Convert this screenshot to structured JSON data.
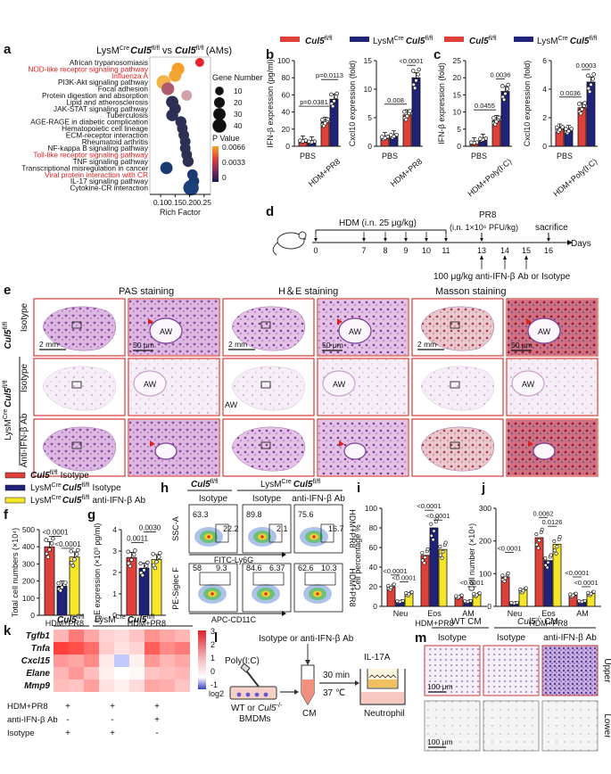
{
  "panels": {
    "a": {
      "letter": "a",
      "title_prefix": "LysM",
      "title_sup": "Cre",
      "title_gene": "Cul5",
      "title_sup2": "fl/fl",
      "title_vs": "vs",
      "title_gene2": "Cul5",
      "title_sup3": "fl/fl",
      "title_suffix": "(AMs)",
      "xlabel": "Rich Factor",
      "xticks": [
        "0.10",
        "0.15",
        "0.20",
        "0.25"
      ],
      "legend_size_title": "Gene Number",
      "legend_sizes": [
        "10",
        "20",
        "30",
        "40"
      ],
      "legend_color_title": "P Value",
      "legend_color_ticks": [
        "0.0066",
        "0.0033",
        "0"
      ],
      "pathways": [
        {
          "name": "African trypanosomiasis",
          "red": false,
          "x": 0.235,
          "size": 8,
          "color": "#e8232a"
        },
        {
          "name": "NOD-like receptor signaling pathway",
          "red": true,
          "x": 0.16,
          "size": 24,
          "color": "#f6a02a"
        },
        {
          "name": "Influenza A",
          "red": true,
          "x": 0.15,
          "size": 22,
          "color": "#f3a535"
        },
        {
          "name": "PI3K-Akt signaling pathway",
          "red": false,
          "x": 0.11,
          "size": 32,
          "color": "#f3b54a"
        },
        {
          "name": "Focal adhesion",
          "red": false,
          "x": 0.125,
          "size": 24,
          "color": "#b05a6e"
        },
        {
          "name": "Protein digestion and absorption",
          "red": false,
          "x": 0.19,
          "size": 14,
          "color": "#d2a3a6"
        },
        {
          "name": "Lipid and atherosclerosis",
          "red": false,
          "x": 0.14,
          "size": 22,
          "color": "#2d2f55"
        },
        {
          "name": "JAK-STAT signaling pathway",
          "red": false,
          "x": 0.15,
          "size": 18,
          "color": "#2d2f55"
        },
        {
          "name": "Tuberculosis",
          "red": false,
          "x": 0.14,
          "size": 20,
          "color": "#2d2f55"
        },
        {
          "name": "AGE-RAGE in diabetic complication",
          "red": false,
          "x": 0.17,
          "size": 16,
          "color": "#2d2f55"
        },
        {
          "name": "Hematopoietic cell lineage",
          "red": false,
          "x": 0.175,
          "size": 14,
          "color": "#2d2f55"
        },
        {
          "name": "ECM-receptor interaction",
          "red": false,
          "x": 0.18,
          "size": 14,
          "color": "#2d2f55"
        },
        {
          "name": "Rheumatoid arthritis",
          "red": false,
          "x": 0.185,
          "size": 14,
          "color": "#2d2f55"
        },
        {
          "name": "NF-kappa B signaling pathway",
          "red": false,
          "x": 0.185,
          "size": 14,
          "color": "#2d2f55"
        },
        {
          "name": "Toll-like receptor signaling pathway",
          "red": true,
          "x": 0.19,
          "size": 14,
          "color": "#2d2f55"
        },
        {
          "name": "TNF signaling pathway",
          "red": false,
          "x": 0.195,
          "size": 16,
          "color": "#2d2f55"
        },
        {
          "name": "Transcriptional misregulation in cancer",
          "red": false,
          "x": 0.12,
          "size": 22,
          "color": "#1b3a70"
        },
        {
          "name": "Viral protein interaction with CR",
          "red": true,
          "x": 0.21,
          "size": 14,
          "color": "#1b3a70"
        },
        {
          "name": "IL-17 signaling pathway",
          "red": false,
          "x": 0.215,
          "size": 14,
          "color": "#1b3a70"
        },
        {
          "name": "Cytokine-CR interaction",
          "red": false,
          "x": 0.205,
          "size": 40,
          "color": "#1a3f7a"
        }
      ]
    },
    "legend_bc": {
      "left_label": "Cul5",
      "left_sup": "fl/fl",
      "right_label_prefix": "LysM",
      "right_sup": "Cre",
      "right_label": "Cul5",
      "right_sup2": "fl/fl"
    },
    "b": {
      "letter": "b",
      "chart1": {
        "ylabel": "IFN-β expression (pg/ml)",
        "yticks": [
          "0",
          "20",
          "40",
          "60",
          "80",
          "100"
        ],
        "xlabels": [
          "PBS",
          "HDM+PR8"
        ],
        "pvals": [
          "p=0.0381",
          "p=0.0113"
        ],
        "values": [
          6,
          5,
          28,
          55
        ],
        "ylim": [
          0,
          100
        ]
      },
      "chart2": {
        "ylabel": "Cxcl10 expression (fold)",
        "yticks": [
          "0",
          "5",
          "10",
          "15"
        ],
        "xlabels": [
          "PBS",
          "HDM+PR8"
        ],
        "pvals": [
          "0.008",
          "<0.0001"
        ],
        "values": [
          1.5,
          1.8,
          5.5,
          12
        ],
        "ylim": [
          0,
          15
        ]
      }
    },
    "c": {
      "letter": "c",
      "chart1": {
        "ylabel": "IFN-β expression (fold)",
        "yticks": [
          "0",
          "5",
          "10",
          "15",
          "20",
          "25"
        ],
        "xlabels": [
          "PBS",
          "HDM+Poly(I:C)"
        ],
        "pvals": [
          "0.0455",
          "0.0036"
        ],
        "values": [
          1,
          2,
          7.5,
          16
        ],
        "ylim": [
          0,
          25
        ]
      },
      "chart2": {
        "ylabel": "Cxcl10 expression (fold)",
        "yticks": [
          "0",
          "2",
          "4",
          "6"
        ],
        "xlabels": [
          "PBS",
          "HDM+Poly(I:C)"
        ],
        "pvals": [
          "0.0036",
          "0.0003"
        ],
        "values": [
          1.2,
          1.1,
          2.7,
          4.5
        ],
        "ylim": [
          0,
          6
        ]
      }
    },
    "d": {
      "letter": "d",
      "hdm_label": "HDM (i.n. 25 μg/kg)",
      "pr8_label": "PR8",
      "pr8_dose": "(i.n. 1×10⁶ PFU/kg)",
      "sacrifice": "sacrifice",
      "days_label": "Days",
      "days": [
        "0",
        "7",
        "8",
        "9",
        "10",
        "11",
        "13",
        "14",
        "15",
        "16"
      ],
      "ab_label": "100 μg/kg anti-IFN-β Ab or Isotype"
    },
    "e": {
      "letter": "e",
      "col_titles": [
        "PAS staining",
        "H＆E staining",
        "Masson staining"
      ],
      "row1_gene": "Cul5",
      "row1_sup": "fl/fl",
      "row_isotype": "Isotype",
      "row_anti": "Anti-IFN-β Ab",
      "row23_prefix": "LysM",
      "row23_sup": "Cre",
      "row23_gene": "Cul5",
      "row23_sup2": "fl/fl",
      "scale_2mm": "2 mm",
      "scale_50um": "50 μm",
      "aw": "AW"
    },
    "legend_fg": {
      "items": [
        {
          "gene": "Cul5",
          "sup": "fl/fl",
          "suffix": "Isotype",
          "color": "#e0403a"
        },
        {
          "prefix": "LysM",
          "psup": "Cre",
          "gene": "Cul5",
          "sup": "fl/fl",
          "suffix": "Isotype",
          "color": "#1f237a"
        },
        {
          "prefix": "LysM",
          "psup": "Cre",
          "gene": "Cul5",
          "sup": "fl/fl",
          "suffix": "anti-IFN-β Ab",
          "color": "#f5e627"
        }
      ]
    },
    "f": {
      "letter": "f",
      "ylabel": "Total cell numbers (×10⁴)",
      "yticks": [
        "0",
        "100",
        "200",
        "300",
        "400",
        "500"
      ],
      "xlabel": "HDM+PR8",
      "pvals": [
        "<0.0001",
        "<0.0001"
      ],
      "values": [
        400,
        170,
        340
      ],
      "ylim": [
        0,
        500
      ]
    },
    "g": {
      "letter": "g",
      "ylabel": "IgE expression (×10³ pg/ml)",
      "yticks": [
        "0",
        "1",
        "2",
        "3",
        "4"
      ],
      "xlabel": "HDM+PR8",
      "pvals": [
        "0.0011",
        "0.0030"
      ],
      "values": [
        2.7,
        2.2,
        2.6
      ],
      "ylim": [
        0,
        4
      ]
    },
    "h": {
      "letter": "h",
      "col1_gene": "Cul5",
      "col1_sup": "fl/fl",
      "col23_prefix": "LysM",
      "col23_sup": "Cre",
      "col23_gene": "Cul5",
      "col23_sup2": "fl/fl",
      "sub_titles": [
        "Isotype",
        "Isotype",
        "anti-IFN-β Ab"
      ],
      "row1_y": "SSC-A",
      "row1_x": "FITC-Ly6G",
      "row2_y": "PE-Siglec F",
      "row2_x": "APC-CD11C",
      "side_label": "HDM+PR8",
      "row1_nums": [
        [
          "63.3",
          "22.2"
        ],
        [
          "89.8",
          "2.1"
        ],
        [
          "75.6",
          "16.7"
        ]
      ],
      "row2_nums": [
        [
          "58",
          "9.3"
        ],
        [
          "84.6",
          "6.37"
        ],
        [
          "62.6",
          "10.3"
        ]
      ]
    },
    "i": {
      "letter": "i",
      "ylabel": "Cell percentage %",
      "yticks": [
        "0",
        "20",
        "40",
        "60",
        "80",
        "100"
      ],
      "categories": [
        "Neu",
        "Eos",
        "AM"
      ],
      "xlabel": "HDM+PR8",
      "pvals": [
        "<0.0001",
        "<0.0001",
        "<0.0001",
        "<0.0001",
        "<0.0001"
      ],
      "values": [
        [
          20,
          5,
          13
        ],
        [
          52,
          80,
          58
        ],
        [
          10,
          5,
          12
        ]
      ],
      "ylim": [
        0,
        100
      ]
    },
    "j": {
      "letter": "j",
      "ylabel": "Cell number (×10⁴)",
      "yticks": [
        "0",
        "100",
        "200",
        "300"
      ],
      "categories": [
        "Neu",
        "Eos",
        "AM"
      ],
      "xlabel": "HDM+PR8",
      "pvals": [
        "<0.0001",
        "0.0062",
        "0.0126",
        "<0.0001",
        "<0.0001"
      ],
      "values": [
        [
          90,
          10,
          50
        ],
        [
          210,
          140,
          190
        ],
        [
          35,
          15,
          40
        ]
      ],
      "ylim": [
        0,
        300
      ]
    },
    "k": {
      "letter": "k",
      "head1_gene": "Cul5",
      "head1_sup": "fl/fl",
      "head2_prefix": "LysM",
      "head2_sup": "Cre",
      "head2_gene": "Cul5",
      "head2_sup2": "fl/fl",
      "genes": [
        "Tgfb1",
        "Tnfa",
        "Cxcl15",
        "Elane",
        "Mmp9"
      ],
      "legend_ticks": [
        "3",
        "2",
        "1",
        "0",
        "-1"
      ],
      "legend_unit": "log2",
      "row_labels": [
        "HDM+PR8",
        "anti-IFN-β Ab",
        "Isotype"
      ],
      "signs": [
        [
          "+",
          "+",
          "+"
        ],
        [
          "-",
          "-",
          "+"
        ],
        [
          "+",
          "+",
          "-"
        ]
      ],
      "matrix": [
        [
          1.0,
          1.8,
          1.2,
          0.6,
          0.5,
          0.8,
          1.5,
          1.2,
          1.0
        ],
        [
          2.6,
          2.4,
          2.0,
          0.7,
          0.4,
          0.6,
          2.2,
          1.6,
          1.8
        ],
        [
          1.4,
          1.2,
          1.6,
          0.3,
          -0.3,
          0.2,
          1.4,
          1.0,
          1.2
        ],
        [
          1.0,
          1.4,
          0.9,
          0.2,
          0.0,
          0.1,
          0.8,
          0.9,
          1.0
        ],
        [
          0.9,
          0.8,
          1.3,
          0.4,
          0.2,
          0.5,
          1.2,
          1.1,
          0.8
        ]
      ]
    },
    "l": {
      "letter": "l",
      "top_label": "Isotype or anti-IFN-β Ab",
      "polyic": "Poly(I:C)",
      "source1": "WT or",
      "source_gene": "Cul5",
      "source_sup": "-/-",
      "source2": "BMDMs",
      "cm": "CM",
      "time": "30 min",
      "temp": "37 ℃",
      "il17a": "IL-17A",
      "neutrophil": "Neutrophil"
    },
    "m": {
      "letter": "m",
      "head_wt": "WT CM",
      "head_ko_gene": "Cul5",
      "head_ko_sup": "-/-",
      "head_ko_suffix": "CM",
      "sub_titles": [
        "Isotype",
        "Isotype",
        "anti-IFN-β Ab"
      ],
      "row_upper": "Upper",
      "row_lower": "Lower",
      "scale": "100 μm"
    }
  }
}
